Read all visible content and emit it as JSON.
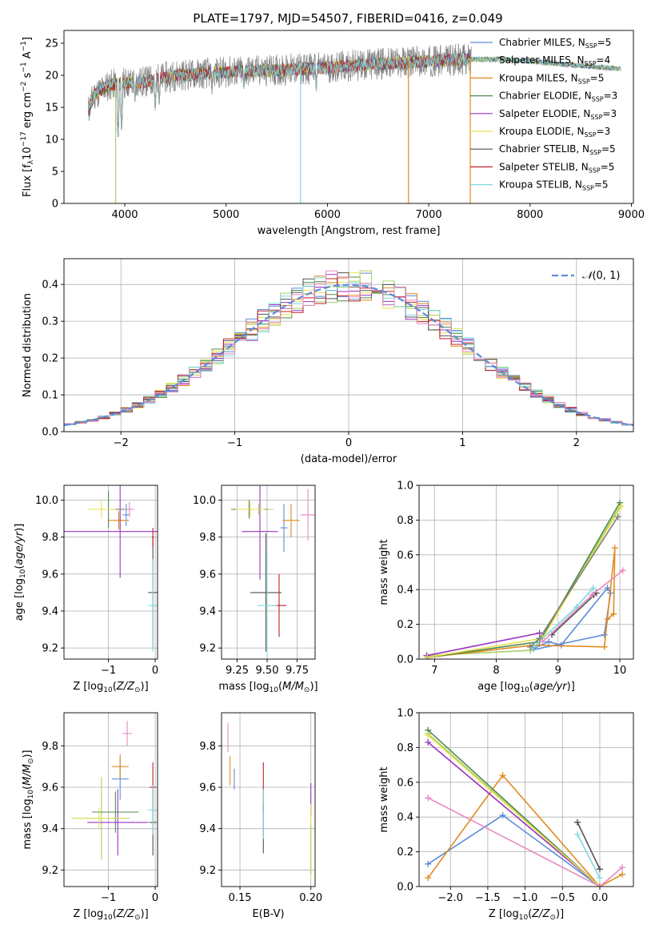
{
  "figure_title": "PLATE=1797, MJD=54507, FIBERID=0416, z=0.049",
  "colors": {
    "Chabrier MILES": "#5b8bd9",
    "Salpeter MILES": "#a8d26a",
    "Kroupa MILES": "#e08a20",
    "Chabrier ELODIE": "#4f8a4f",
    "Salpeter ELODIE": "#9a32c0",
    "Kroupa ELODIE": "#e8e050",
    "Chabrier STELIB": "#505050",
    "Salpeter STELIB": "#c0202a",
    "Kroupa STELIB": "#80d8e0",
    "Normal": "#5b8bd9",
    "Pink": "#e888c0",
    "Gray": "#808080"
  },
  "chart_data": [
    {
      "id": "spectrum",
      "type": "line",
      "title": "PLATE=1797, MJD=54507, FIBERID=0416, z=0.049",
      "xlabel": "wavelength [Angstrom, rest frame]",
      "ylabel": "Flux [f_λ 10^-17 erg cm^-2 s^-1 A^-1]",
      "xlim": [
        3400,
        9020
      ],
      "ylim": [
        0,
        27
      ],
      "xticks": [
        4000,
        5000,
        6000,
        7000,
        8000,
        9000
      ],
      "yticks": [
        0,
        5,
        10,
        15,
        20,
        25
      ],
      "legend_position": "right",
      "legend": [
        {
          "name": "Chabrier MILES",
          "nssp": "5"
        },
        {
          "name": "Salpeter MILES",
          "nssp": "4"
        },
        {
          "name": "Kroupa MILES",
          "nssp": "5"
        },
        {
          "name": "Chabrier ELODIE",
          "nssp": "3"
        },
        {
          "name": "Salpeter ELODIE",
          "nssp": "3"
        },
        {
          "name": "Kroupa ELODIE",
          "nssp": "3"
        },
        {
          "name": "Chabrier STELIB",
          "nssp": "5"
        },
        {
          "name": "Salpeter STELIB",
          "nssp": "5"
        },
        {
          "name": "Kroupa STELIB",
          "nssp": "5"
        }
      ],
      "continuum": [
        [
          3640,
          14.5
        ],
        [
          3700,
          17.0
        ],
        [
          3850,
          18.5
        ],
        [
          4000,
          18.8
        ],
        [
          4200,
          19.0
        ],
        [
          4500,
          20.0
        ],
        [
          5000,
          20.5
        ],
        [
          5500,
          20.8
        ],
        [
          6000,
          21.2
        ],
        [
          6500,
          21.8
        ],
        [
          7000,
          22.2
        ],
        [
          7400,
          22.5
        ],
        [
          7700,
          22.5
        ],
        [
          8000,
          22.2
        ],
        [
          8500,
          21.5
        ],
        [
          8900,
          21.0
        ]
      ],
      "absorption_lines": [
        [
          3933,
          10.0
        ],
        [
          3968,
          11.0
        ],
        [
          4101,
          15.5
        ],
        [
          4300,
          14.5
        ],
        [
          4340,
          15.0
        ],
        [
          4861,
          17.0
        ],
        [
          5175,
          17.5
        ],
        [
          5890,
          17.5
        ]
      ],
      "spikes": [
        [
          3910,
          0.0
        ],
        [
          5735,
          0.0
        ],
        [
          6800,
          0.0
        ],
        [
          7410,
          0.0
        ]
      ]
    },
    {
      "id": "residuals",
      "type": "line",
      "xlabel": "(data-model)/error",
      "ylabel": "Normed distribution",
      "xlim": [
        -2.5,
        2.5
      ],
      "ylim": [
        0,
        0.47
      ],
      "xticks": [
        -2,
        -1,
        0,
        1,
        2
      ],
      "yticks": [
        0.0,
        0.1,
        0.2,
        0.3,
        0.4
      ],
      "legend_position": "top-right",
      "legend_label": "N(0, 1)",
      "bin_width": 0.1,
      "grid": true
    },
    {
      "id": "age-vs-Z",
      "type": "scatter",
      "xlabel": "Z [log10(Z/Z☉)]",
      "ylabel": "age [log10(age/yr)]",
      "xlim": [
        -1.95,
        0.05
      ],
      "ylim": [
        9.14,
        10.08
      ],
      "xticks": [
        -1,
        0
      ],
      "yticks": [
        9.2,
        9.4,
        9.6,
        9.8,
        10.0
      ],
      "points": [
        {
          "model": "Chabrier MILES",
          "x": -0.62,
          "y": 9.92,
          "ex": 0.08,
          "ey": 0.06
        },
        {
          "model": "Salpeter MILES",
          "x": -0.75,
          "y": 9.89,
          "ex": 0.1,
          "ey": 0.04
        },
        {
          "model": "Kroupa MILES",
          "x": -0.78,
          "y": 9.89,
          "ex": 0.22,
          "ey": 0.05
        },
        {
          "model": "Chabrier ELODIE",
          "x": -1.0,
          "y": 9.95,
          "ex": 0.35,
          "ey": 0.1
        },
        {
          "model": "Salpeter ELODIE",
          "x": -0.75,
          "y": 9.83,
          "ex": 1.8,
          "ey": 0.25
        },
        {
          "model": "Kroupa ELODIE",
          "x": -1.15,
          "y": 9.95,
          "ex": 0.3,
          "ey": 0.05
        },
        {
          "model": "Chabrier STELIB",
          "x": -0.05,
          "y": 9.5,
          "ex": 0.1,
          "ey": 0.3
        },
        {
          "model": "Salpeter STELIB",
          "x": -0.05,
          "y": 9.8,
          "ex": 0.02,
          "ey": 0.05
        },
        {
          "model": "Kroupa STELIB",
          "x": -0.05,
          "y": 9.43,
          "ex": 0.1,
          "ey": 0.25
        },
        {
          "model": "Pink",
          "x": -0.55,
          "y": 9.95,
          "ex": 0.1,
          "ey": 0.04
        }
      ]
    },
    {
      "id": "age-vs-mass",
      "type": "scatter",
      "xlabel": "mass [log10(M/M☉)]",
      "ylabel": "",
      "xlim": [
        9.12,
        9.9
      ],
      "ylim": [
        9.14,
        10.08
      ],
      "xticks": [
        9.25,
        9.5,
        9.75
      ],
      "yticks": [
        9.2,
        9.4,
        9.6,
        9.8,
        10.0
      ],
      "points": [
        {
          "model": "Chabrier MILES",
          "x": 9.64,
          "y": 9.85,
          "ex": 0.03,
          "ey": 0.13
        },
        {
          "model": "Salpeter MILES",
          "x": 9.43,
          "y": 9.95,
          "ex": 0.12,
          "ey": 0.03
        },
        {
          "model": "Kroupa MILES",
          "x": 9.7,
          "y": 9.89,
          "ex": 0.07,
          "ey": 0.09
        },
        {
          "model": "Chabrier ELODIE",
          "x": 9.35,
          "y": 9.95,
          "ex": 0.15,
          "ey": 0.05
        },
        {
          "model": "Salpeter ELODIE",
          "x": 9.44,
          "y": 9.83,
          "ex": 0.15,
          "ey": 0.26
        },
        {
          "model": "Kroupa ELODIE",
          "x": 9.36,
          "y": 9.95,
          "ex": 0.12,
          "ey": 0.04
        },
        {
          "model": "Chabrier STELIB",
          "x": 9.49,
          "y": 9.5,
          "ex": 0.13,
          "ey": 0.32
        },
        {
          "model": "Salpeter STELIB",
          "x": 9.6,
          "y": 9.43,
          "ex": 0.06,
          "ey": 0.17
        },
        {
          "model": "Kroupa STELIB",
          "x": 9.5,
          "y": 9.43,
          "ex": 0.08,
          "ey": 0.3
        },
        {
          "model": "Pink",
          "x": 9.84,
          "y": 9.92,
          "ex": 0.06,
          "ey": 0.14
        }
      ]
    },
    {
      "id": "weight-vs-age",
      "type": "line",
      "xlabel": "age [log10(age/yr)]",
      "ylabel": "mass weight",
      "xlim": [
        6.75,
        10.22
      ],
      "ylim": [
        0,
        1
      ],
      "xticks": [
        7,
        8,
        9,
        10
      ],
      "yticks": [
        0.0,
        0.2,
        0.4,
        0.6,
        0.8,
        1.0
      ],
      "series": [
        {
          "model": "Chabrier MILES",
          "x": [
            8.55,
            9.75,
            9.85,
            9.8,
            9.05,
            8.85,
            8.6
          ],
          "y": [
            0.05,
            0.14,
            0.38,
            0.41,
            0.08,
            0.1,
            0.06
          ]
        },
        {
          "model": "Salpeter MILES",
          "x": [
            6.88,
            8.55,
            8.7,
            10.0
          ],
          "y": [
            0.02,
            0.05,
            0.1,
            0.88
          ]
        },
        {
          "model": "Kroupa MILES",
          "x": [
            6.9,
            8.6,
            9.75,
            9.92,
            9.9,
            9.8
          ],
          "y": [
            0.01,
            0.08,
            0.07,
            0.64,
            0.26,
            0.23
          ]
        },
        {
          "model": "Chabrier ELODIE",
          "x": [
            6.9,
            8.7,
            10.0
          ],
          "y": [
            0.01,
            0.1,
            0.9
          ]
        },
        {
          "model": "Salpeter ELODIE",
          "x": [
            6.87,
            8.7
          ],
          "y": [
            0.02,
            0.15
          ]
        },
        {
          "model": "Kroupa ELODIE",
          "x": [
            6.88,
            8.75,
            10.02
          ],
          "y": [
            0.01,
            0.12,
            0.88
          ]
        },
        {
          "model": "Chabrier STELIB",
          "x": [
            8.9,
            9.62,
            9.58
          ],
          "y": [
            0.14,
            0.38,
            0.37
          ]
        },
        {
          "model": "Kroupa STELIB",
          "x": [
            8.6,
            9.3,
            9.57
          ],
          "y": [
            0.07,
            0.3,
            0.41
          ]
        },
        {
          "model": "Pink",
          "x": [
            8.75,
            9.55,
            10.05
          ],
          "y": [
            0.1,
            0.37,
            0.51
          ]
        },
        {
          "model": "Gray",
          "x": [
            8.55,
            8.7,
            9.97
          ],
          "y": [
            0.07,
            0.12,
            0.82
          ]
        }
      ]
    },
    {
      "id": "mass-vs-Z",
      "type": "scatter",
      "xlabel": "Z [log10(Z/Z☉)]",
      "ylabel": "mass [log10(M/M☉)]",
      "xlim": [
        -1.95,
        0.05
      ],
      "ylim": [
        9.12,
        9.96
      ],
      "xticks": [
        -1,
        0
      ],
      "yticks": [
        9.2,
        9.4,
        9.6,
        9.8
      ],
      "points": [
        {
          "model": "Chabrier MILES",
          "x": -0.75,
          "y": 9.64,
          "ex": 0.18,
          "ey": 0.1
        },
        {
          "model": "Salpeter MILES",
          "x": -1.15,
          "y": 9.45,
          "ex": 0.6,
          "ey": 0.2
        },
        {
          "model": "Kroupa MILES",
          "x": -0.75,
          "y": 9.7,
          "ex": 0.18,
          "ey": 0.06
        },
        {
          "model": "Chabrier ELODIE",
          "x": -0.85,
          "y": 9.48,
          "ex": 0.5,
          "ey": 0.1
        },
        {
          "model": "Salpeter ELODIE",
          "x": -0.8,
          "y": 9.43,
          "ex": 0.65,
          "ey": 0.16
        },
        {
          "model": "Kroupa ELODIE",
          "x": -1.2,
          "y": 9.45,
          "ex": 0.6,
          "ey": 0.05
        },
        {
          "model": "Chabrier STELIB",
          "x": -0.05,
          "y": 9.43,
          "ex": 0.08,
          "ey": 0.16
        },
        {
          "model": "Salpeter STELIB",
          "x": -0.05,
          "y": 9.6,
          "ex": 0.07,
          "ey": 0.12
        },
        {
          "model": "Kroupa STELIB",
          "x": -0.05,
          "y": 9.49,
          "ex": 0.1,
          "ey": 0.12
        },
        {
          "model": "Pink",
          "x": -0.6,
          "y": 9.86,
          "ex": 0.1,
          "ey": 0.06
        }
      ]
    },
    {
      "id": "mass-vs-ebv",
      "type": "scatter",
      "xlabel": "E(B-V)",
      "ylabel": "",
      "xlim": [
        0.137,
        0.203
      ],
      "ylim": [
        9.12,
        9.96
      ],
      "xticks": [
        0.15,
        0.2
      ],
      "yticks": [
        9.2,
        9.4,
        9.6,
        9.8
      ],
      "points": [
        {
          "model": "Chabrier MILES",
          "x": 0.146,
          "y": 9.64,
          "ex": 0.0,
          "ey": 0.05
        },
        {
          "model": "Kroupa MILES",
          "x": 0.143,
          "y": 9.68,
          "ex": 0.0,
          "ey": 0.07
        },
        {
          "model": "Pink",
          "x": 0.1415,
          "y": 9.84,
          "ex": 0.0,
          "ey": 0.07
        },
        {
          "model": "Salpeter STELIB",
          "x": 0.1665,
          "y": 9.6,
          "ex": 0.0,
          "ey": 0.12
        },
        {
          "model": "Chabrier STELIB",
          "x": 0.1665,
          "y": 9.4,
          "ex": 0.0,
          "ey": 0.12
        },
        {
          "model": "Kroupa STELIB",
          "x": 0.1665,
          "y": 9.47,
          "ex": 0.0,
          "ey": 0.12
        },
        {
          "model": "Salpeter ELODIE",
          "x": 0.2,
          "y": 9.54,
          "ex": 0.0,
          "ey": 0.08
        },
        {
          "model": "Kroupa ELODIE",
          "x": 0.2,
          "y": 9.34,
          "ex": 0.0,
          "ey": 0.18
        },
        {
          "model": "Salpeter MILES",
          "x": 0.2,
          "y": 9.3,
          "ex": 0.0,
          "ey": 0.12
        }
      ]
    },
    {
      "id": "weight-vs-Z",
      "type": "line",
      "xlabel": "Z [log10(Z/Z☉)]",
      "ylabel": "mass weight",
      "xlim": [
        -2.42,
        0.45
      ],
      "ylim": [
        0,
        1
      ],
      "xticks": [
        -2.0,
        -1.5,
        -1.0,
        -0.5,
        0.0
      ],
      "yticks": [
        0.0,
        0.2,
        0.4,
        0.6,
        0.8,
        1.0
      ],
      "series": [
        {
          "model": "Chabrier MILES",
          "x": [
            -2.3,
            -1.3,
            0.0
          ],
          "y": [
            0.13,
            0.41,
            0.0
          ]
        },
        {
          "model": "Salpeter MILES",
          "x": [
            -2.3,
            0.0
          ],
          "y": [
            0.88,
            0.0
          ]
        },
        {
          "model": "Kroupa MILES",
          "x": [
            -2.3,
            -1.3,
            0.0,
            0.3
          ],
          "y": [
            0.05,
            0.64,
            0.0,
            0.07
          ]
        },
        {
          "model": "Chabrier ELODIE",
          "x": [
            -2.3,
            0.0
          ],
          "y": [
            0.9,
            0.0
          ]
        },
        {
          "model": "Salpeter ELODIE",
          "x": [
            -2.3,
            0.0
          ],
          "y": [
            0.83,
            0.0
          ]
        },
        {
          "model": "Kroupa ELODIE",
          "x": [
            -2.3,
            0.0
          ],
          "y": [
            0.87,
            0.0
          ]
        },
        {
          "model": "Chabrier STELIB",
          "x": [
            -0.3,
            0.0
          ],
          "y": [
            0.37,
            0.1
          ]
        },
        {
          "model": "Kroupa STELIB",
          "x": [
            -0.3,
            0.0
          ],
          "y": [
            0.3,
            0.05
          ]
        },
        {
          "model": "Pink",
          "x": [
            -2.3,
            0.0,
            0.3
          ],
          "y": [
            0.51,
            0.0,
            0.11
          ]
        }
      ]
    }
  ]
}
